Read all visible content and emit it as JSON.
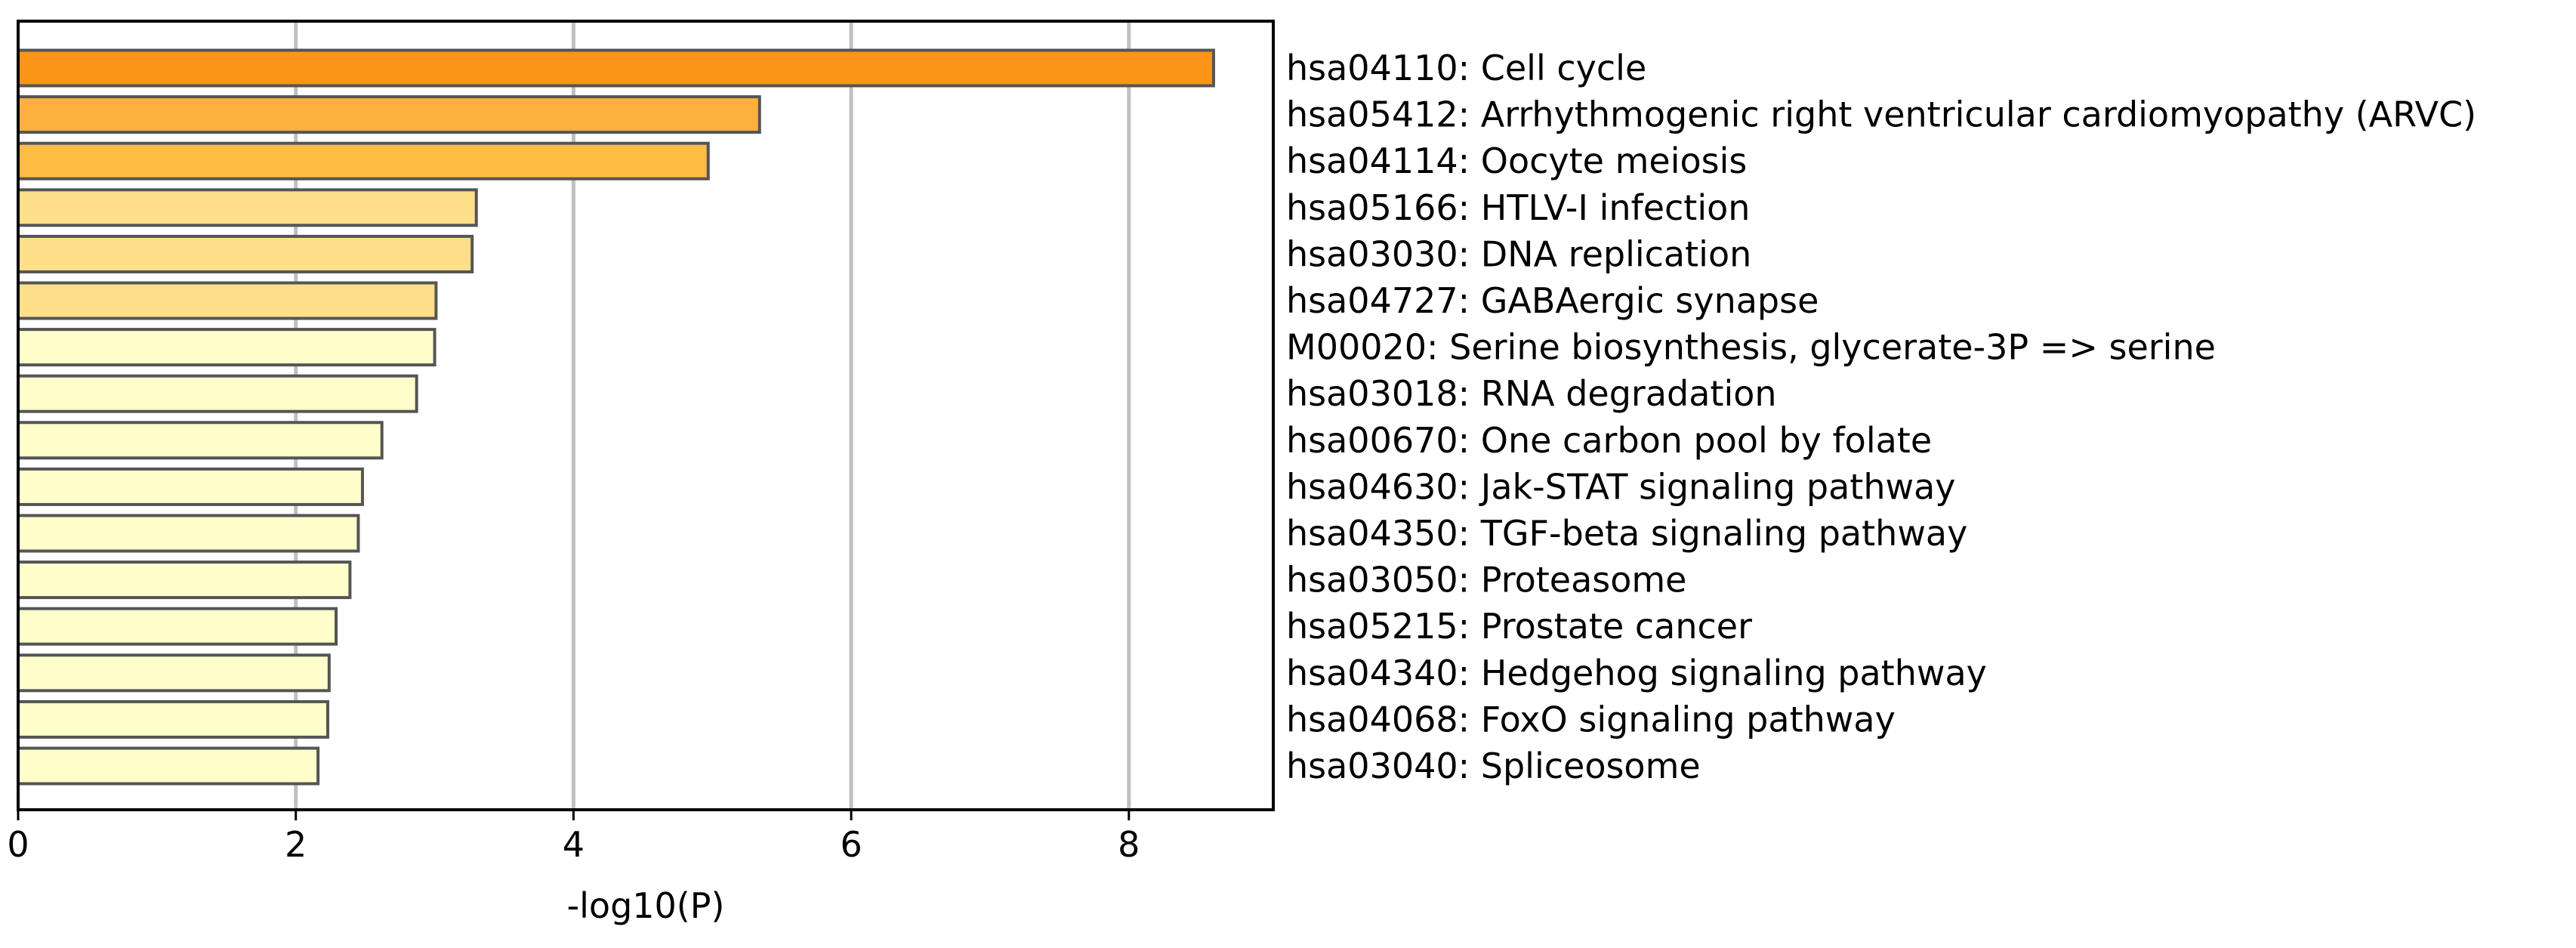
{
  "chart_data": {
    "type": "bar",
    "orientation": "horizontal",
    "title": "",
    "xlabel": "-log10(P)",
    "ylabel": "",
    "xlim": [
      0,
      9.04
    ],
    "xticks": [
      0,
      2,
      4,
      6,
      8
    ],
    "grid": "vertical",
    "legend": "none",
    "categories": [
      "hsa04110: Cell cycle",
      "hsa05412: Arrhythmogenic right ventricular cardiomyopathy (ARVC)",
      "hsa04114: Oocyte meiosis",
      "hsa05166: HTLV-I infection",
      "hsa03030: DNA replication",
      "hsa04727: GABAergic synapse",
      "M00020: Serine biosynthesis, glycerate-3P => serine",
      "hsa03018: RNA degradation",
      "hsa00670: One carbon pool by folate",
      "hsa04630: Jak-STAT signaling pathway",
      "hsa04350: TGF-beta signaling pathway",
      "hsa03050: Proteasome",
      "hsa05215: Prostate cancer",
      "hsa04340: Hedgehog signaling pathway",
      "hsa04068: FoxO signaling pathway",
      "hsa03040: Spliceosome"
    ],
    "values": [
      8.61,
      5.34,
      4.97,
      3.3,
      3.27,
      3.01,
      3.0,
      2.87,
      2.62,
      2.48,
      2.45,
      2.39,
      2.29,
      2.24,
      2.23,
      2.16
    ],
    "colors": [
      "#fd9518",
      "#fdb03e",
      "#febc44",
      "#fee08b",
      "#fee08b",
      "#fee08b",
      "#ffffcc",
      "#ffffcc",
      "#ffffcc",
      "#ffffcc",
      "#ffffcc",
      "#ffffcc",
      "#ffffcc",
      "#ffffcc",
      "#ffffcc",
      "#ffffcc"
    ],
    "bar_edge_color": "#555555",
    "grid_color": "#c0c0c0"
  }
}
